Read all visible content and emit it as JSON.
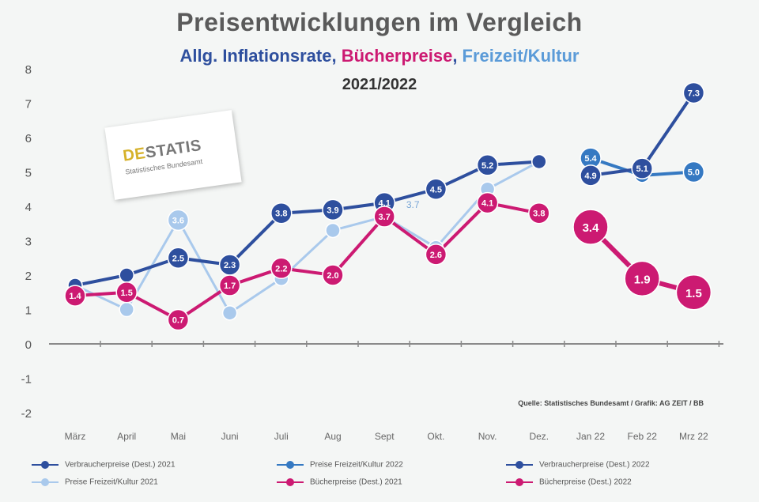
{
  "header": {
    "title": "Preisentwicklungen im  Vergleich",
    "subtitle_part1": "Allg. Inflationsrate, ",
    "subtitle_part2": "Bücherpreise",
    "subtitle_part3": ", ",
    "subtitle_part4": "Freizeit/Kultur",
    "years": "2021/2022"
  },
  "logo": {
    "name_prefix": "DE",
    "name_rest": "STATIS",
    "subtitle": "Statistisches Bundesamt"
  },
  "colors": {
    "inflation": "#2e4f9e",
    "freizeit_2022": "#3579c2",
    "freizeit_2021": "#a9c9ec",
    "buecher": "#cc1a72",
    "subtitle_gray": "#2e4f9e"
  },
  "source_note": "Quelle: Statistisches Bundesamt / Grafik: AG ZEIT / BB",
  "chart_data": {
    "type": "line",
    "categories": [
      "März",
      "April",
      "Mai",
      "Juni",
      "Juli",
      "Aug",
      "Sept",
      "Okt.",
      "Nov.",
      "Dez.",
      "Jan 22",
      "Feb 22",
      "Mrz 22"
    ],
    "ylim": [
      -2,
      8
    ],
    "yticks": [
      -2,
      -1,
      0,
      1,
      2,
      3,
      4,
      5,
      6,
      7,
      8
    ],
    "grid": false,
    "legend_position": "bottom",
    "series": [
      {
        "name": "Preise Freizeit/Kultur 2021",
        "color": "#a9c9ec",
        "values": [
          1.7,
          1.0,
          3.6,
          0.9,
          1.9,
          3.3,
          3.7,
          2.8,
          4.5,
          5.3,
          null,
          null,
          null
        ],
        "labels": [
          "",
          "",
          "3.6",
          "",
          "",
          "",
          "",
          "",
          "",
          "",
          "",
          "",
          ""
        ]
      },
      {
        "name": "Verbraucherpreise (Dest.) 2021",
        "color": "#2e4f9e",
        "values": [
          1.7,
          2.0,
          2.5,
          2.3,
          3.8,
          3.9,
          4.1,
          4.5,
          5.2,
          5.3,
          null,
          null,
          null
        ],
        "labels": [
          "",
          "",
          "2.5",
          "2.3",
          "3.8",
          "3.9",
          "4.1",
          "4.5",
          "5.2",
          "",
          "",
          "",
          ""
        ]
      },
      {
        "name": "Bücherpreise (Dest.) 2021",
        "color": "#cc1a72",
        "values": [
          1.4,
          1.5,
          0.7,
          1.7,
          2.2,
          2.0,
          3.7,
          2.6,
          4.1,
          3.8,
          null,
          null,
          null
        ],
        "labels": [
          "1.4",
          "1.5",
          "0.7",
          "1.7",
          "2.2",
          "2.0",
          "3.7",
          "2.6",
          "4.1",
          "3.8",
          "",
          "",
          ""
        ]
      },
      {
        "name": "Preise Freizeit/Kultur 2022",
        "color": "#3579c2",
        "values": [
          null,
          null,
          null,
          null,
          null,
          null,
          null,
          null,
          null,
          null,
          5.4,
          4.9,
          5.0
        ],
        "labels": [
          "",
          "",
          "",
          "",
          "",
          "",
          "",
          "",
          "",
          "",
          "5.4",
          "",
          "5.0"
        ]
      },
      {
        "name": "Verbraucherpreise (Dest.) 2022",
        "color": "#2e4f9e",
        "values": [
          null,
          null,
          null,
          null,
          null,
          null,
          null,
          null,
          null,
          null,
          4.9,
          5.1,
          7.3
        ],
        "labels": [
          "",
          "",
          "",
          "",
          "",
          "",
          "",
          "",
          "",
          "",
          "4.9",
          "5.1",
          "7.3"
        ]
      },
      {
        "name": "Bücherpreise (Dest.) 2022",
        "color": "#cc1a72",
        "values": [
          null,
          null,
          null,
          null,
          null,
          null,
          null,
          null,
          null,
          null,
          3.4,
          1.9,
          1.5
        ],
        "labels": [
          "",
          "",
          "",
          "",
          "",
          "",
          "",
          "",
          "",
          "",
          "3.4",
          "1.9",
          "1.5"
        ],
        "big": true
      }
    ],
    "extra_annotation": {
      "text": "3.7",
      "series_color": "#a9c9ec"
    }
  },
  "legend": [
    {
      "label": "Verbraucherpreise (Dest.) 2021",
      "color": "#2e4f9e"
    },
    {
      "label": "Preise Freizeit/Kultur 2022",
      "color": "#3579c2"
    },
    {
      "label": "Verbraucherpreise (Dest.) 2022",
      "color": "#2e4f9e"
    },
    {
      "label": "Preise Freizeit/Kultur 2021",
      "color": "#a9c9ec"
    },
    {
      "label": "Bücherpreise (Dest.) 2021",
      "color": "#cc1a72"
    },
    {
      "label": "Bücherpreise (Dest.) 2022",
      "color": "#cc1a72"
    }
  ]
}
